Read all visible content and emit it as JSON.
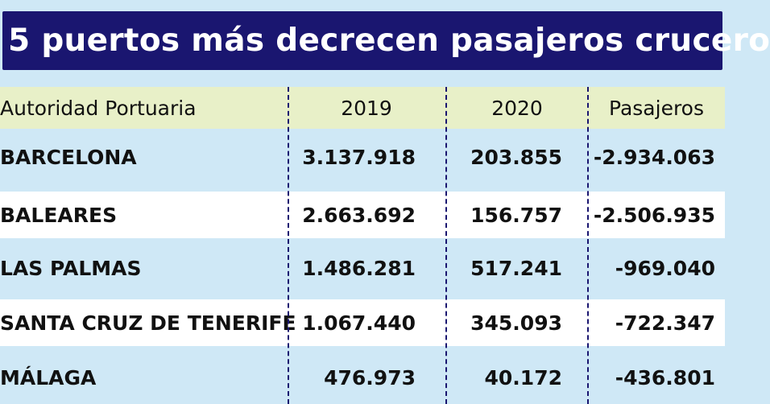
{
  "title": "5 puertos más decrecen pasajeros crucero",
  "chart_data": {
    "type": "table",
    "columns": [
      "Autoridad Portuaria",
      "2019",
      "2020",
      "Pasajeros"
    ],
    "rows": [
      [
        "BARCELONA",
        "3.137.918",
        "203.855",
        "-2.934.063"
      ],
      [
        "BALEARES",
        "2.663.692",
        "156.757",
        "-2.506.935"
      ],
      [
        "LAS PALMAS",
        "1.486.281",
        "517.241",
        "-969.040"
      ],
      [
        "SANTA CRUZ DE TENERIFE",
        "1.067.440",
        "345.093",
        "-722.347"
      ],
      [
        "MÁLAGA",
        "476.973",
        "40.172",
        "-436.801"
      ]
    ]
  },
  "colors": {
    "title_background": "#1a1670",
    "header_background": "#e8f0c8",
    "row_light_blue": "#cfe8f6",
    "row_white": "#ffffff",
    "divider": "#1a1670"
  }
}
